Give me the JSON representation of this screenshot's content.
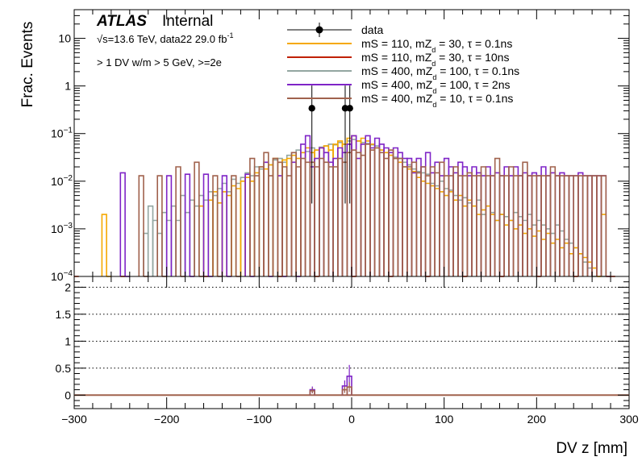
{
  "chart_data": [
    {
      "type": "histogram",
      "panel": "main",
      "ylabel": "Frac. Events",
      "yscale": "log",
      "ylim": [
        0.0001,
        40
      ],
      "xlim": [
        -300,
        300
      ],
      "y_ticks": [
        {
          "v": 0.0001,
          "base": "10",
          "exp": "−4"
        },
        {
          "v": 0.001,
          "base": "10",
          "exp": "−3"
        },
        {
          "v": 0.01,
          "base": "10",
          "exp": "−2"
        },
        {
          "v": 0.1,
          "base": "10",
          "exp": "−1"
        },
        {
          "v": 1,
          "base": "1",
          "exp": ""
        },
        {
          "v": 10,
          "base": "10",
          "exp": ""
        }
      ],
      "annotations": {
        "atlas": "ATLAS",
        "internal": "Internal",
        "lumi_a": "√s=13.6 TeV, data22 29.0 fb",
        "lumi_exp": "-1",
        "selection": "> 1 DV w/m > 5 GeV, >=2e"
      },
      "legend": [
        {
          "label": "data",
          "color": "#000000",
          "marker": "point"
        },
        {
          "label": "mS = 110, mZ_d = 30, τ = 0.1ns",
          "color": "#f5a800"
        },
        {
          "label": "mS = 110, mZ_d = 30, τ = 10ns",
          "color": "#c02000"
        },
        {
          "label": "mS = 400, mZ_d = 100, τ = 0.1ns",
          "color": "#93a6a1"
        },
        {
          "label": "mS = 400, mZ_d = 100, τ = 2ns",
          "color": "#7f24c7"
        },
        {
          "label": "mS = 400, mZ_d = 10, τ = 0.1ns",
          "color": "#a0624d"
        }
      ],
      "data_points": [
        {
          "x": -43,
          "y": 0.34
        },
        {
          "x": -7,
          "y": 0.34
        },
        {
          "x": -2,
          "y": 0.34
        }
      ],
      "series": [
        {
          "name": "mS = 400, mZ_d = 100, τ = 0.1ns",
          "color": "#93a6a1",
          "x": [
            -225,
            -220,
            -215,
            -210,
            -205,
            -200,
            -195,
            -190,
            -185,
            -180,
            -175,
            -170,
            -165,
            -160,
            -155,
            -150,
            -145,
            -140,
            -135,
            -130,
            -125,
            -120,
            -115,
            -110,
            -105,
            -100,
            -95,
            -90,
            -85,
            -80,
            -75,
            -70,
            -65,
            -60,
            -55,
            -50,
            -45,
            -40,
            -35,
            -30,
            -25,
            -20,
            -15,
            -10,
            -5,
            0,
            5,
            10,
            15,
            20,
            25,
            30,
            35,
            40,
            45,
            50,
            55,
            60,
            65,
            70,
            75,
            80,
            85,
            90,
            95,
            100,
            105,
            110,
            115,
            120,
            125,
            130,
            135,
            140,
            145,
            150,
            155,
            160,
            165,
            170,
            175,
            180,
            185,
            190,
            195,
            200,
            205,
            210,
            215,
            220,
            225,
            230,
            235,
            240,
            245,
            250,
            255,
            260,
            265,
            270
          ],
          "values": [
            0.0008,
            0.003,
            0.0015,
            0.0008,
            0.0022,
            0.0015,
            0.003,
            0.0015,
            0.005,
            0.0022,
            0.004,
            0.003,
            0.005,
            0.004,
            0.006,
            0.005,
            0.007,
            0.009,
            0.006,
            0.011,
            0.009,
            0.012,
            0.015,
            0.013,
            0.02,
            0.018,
            0.025,
            0.022,
            0.028,
            0.03,
            0.025,
            0.035,
            0.04,
            0.045,
            0.04,
            0.042,
            0.05,
            0.045,
            0.052,
            0.055,
            0.06,
            0.058,
            0.065,
            0.06,
            0.07,
            0.075,
            0.07,
            0.065,
            0.062,
            0.058,
            0.055,
            0.045,
            0.04,
            0.035,
            0.032,
            0.03,
            0.025,
            0.022,
            0.018,
            0.016,
            0.015,
            0.014,
            0.009,
            0.008,
            0.01,
            0.007,
            0.0065,
            0.005,
            0.004,
            0.0045,
            0.0035,
            0.003,
            0.004,
            0.002,
            0.003,
            0.0022,
            0.0015,
            0.002,
            0.0018,
            0.0015,
            0.0022,
            0.0018,
            0.0015,
            0.002,
            0.0012,
            0.0015,
            0.0012,
            0.001,
            0.0008,
            0.0012,
            0.0009,
            0.0006,
            0.0005,
            0.0004,
            0.0003,
            0.0002,
            0.00015,
            0.0001,
            0.0001,
            0.0001
          ]
        },
        {
          "name": "mS = 110, mZ_d = 30, τ = 0.1ns",
          "color": "#f5a800",
          "x": [
            -270,
            -265,
            -165,
            -155,
            -150,
            -145,
            -140,
            -135,
            -130,
            -125,
            -120,
            -115,
            -110,
            -105,
            -100,
            -95,
            -90,
            -85,
            -80,
            -75,
            -70,
            -65,
            -60,
            -55,
            -50,
            -45,
            -40,
            -35,
            -30,
            -25,
            -20,
            -15,
            -10,
            -5,
            0,
            5,
            10,
            15,
            20,
            25,
            30,
            35,
            40,
            45,
            50,
            55,
            60,
            65,
            70,
            75,
            80,
            85,
            90,
            95,
            100,
            105,
            110,
            115,
            120,
            125,
            130,
            135,
            140,
            145,
            150,
            155,
            160,
            165,
            170,
            175,
            180,
            185,
            190,
            195,
            200,
            205,
            210,
            215,
            220,
            225,
            230,
            235,
            240,
            245,
            250,
            255,
            260,
            265,
            270,
            275
          ],
          "values": [
            0.002,
            0.0001,
            0.003,
            0.004,
            0.006,
            0.0035,
            0.006,
            0.005,
            0.008,
            0.007,
            0.01,
            0.012,
            0.01,
            0.015,
            0.02,
            0.018,
            0.022,
            0.03,
            0.025,
            0.028,
            0.03,
            0.035,
            0.03,
            0.04,
            0.05,
            0.04,
            0.045,
            0.05,
            0.055,
            0.045,
            0.06,
            0.07,
            0.06,
            0.08,
            0.09,
            0.07,
            0.08,
            0.07,
            0.06,
            0.05,
            0.045,
            0.04,
            0.035,
            0.03,
            0.025,
            0.02,
            0.018,
            0.016,
            0.012,
            0.01,
            0.009,
            0.008,
            0.007,
            0.006,
            0.005,
            0.006,
            0.004,
            0.005,
            0.003,
            0.004,
            0.003,
            0.002,
            0.0025,
            0.003,
            0.002,
            0.0015,
            0.002,
            0.0012,
            0.0015,
            0.001,
            0.0012,
            0.0008,
            0.001,
            0.0007,
            0.0009,
            0.0006,
            0.0008,
            0.0005,
            0.0006,
            0.0004,
            0.0005,
            0.0003,
            0.0004,
            0.0003,
            0.00025,
            0.0002,
            0.00015,
            0.0001,
            0.002,
            0.0001
          ]
        },
        {
          "name": "mS = 110, mZ_d = 30, τ = 10ns",
          "color": "#c02000",
          "x": [
            -300,
            -250,
            -160,
            -80,
            -40,
            0,
            40,
            80,
            120,
            160,
            200,
            240,
            280
          ],
          "values": [
            0.0001,
            0.0001,
            0.0001,
            0.0001,
            0.0001,
            0.0001,
            0.0001,
            0.0001,
            0.0001,
            0.0001,
            0.0001,
            0.0001,
            0.0001
          ]
        },
        {
          "name": "mS = 400, mZ_d = 100, τ = 2ns",
          "color": "#7f24c7",
          "x": [
            -250,
            -245,
            -200,
            -180,
            -175,
            -160,
            -155,
            -140,
            -135,
            -115,
            -110,
            -95,
            -90,
            -80,
            -75,
            -65,
            -60,
            -55,
            -50,
            -45,
            -40,
            -35,
            -30,
            -25,
            -20,
            -15,
            -10,
            -5,
            0,
            5,
            10,
            15,
            20,
            25,
            30,
            35,
            40,
            45,
            50,
            55,
            60,
            65,
            70,
            75,
            80,
            85,
            90,
            95,
            100,
            105,
            110,
            115,
            120,
            125,
            130,
            135,
            140,
            145,
            150,
            155,
            160,
            165,
            170,
            175,
            180,
            185,
            190,
            195,
            200,
            205,
            210,
            215,
            220,
            225,
            230,
            235,
            240,
            245,
            250,
            255,
            260,
            265,
            270,
            275
          ],
          "values": [
            0.015,
            0.0001,
            0.013,
            0.014,
            0.0001,
            0.014,
            0.0001,
            0.013,
            0.0001,
            0.014,
            0.0001,
            0.025,
            0.0001,
            0.013,
            0.0001,
            0.025,
            0.0001,
            0.06,
            0.09,
            0.02,
            0.03,
            0.05,
            0.04,
            0.025,
            0.03,
            0.05,
            0.04,
            0.06,
            0.09,
            0.03,
            0.06,
            0.09,
            0.05,
            0.08,
            0.06,
            0.05,
            0.04,
            0.05,
            0.04,
            0.03,
            0.03,
            0.015,
            0.03,
            0.02,
            0.04,
            0.015,
            0.025,
            0.013,
            0.03,
            0.02,
            0.015,
            0.025,
            0.02,
            0.013,
            0.02,
            0.015,
            0.013,
            0.02,
            0.013,
            0.015,
            0.013,
            0.02,
            0.013,
            0.02,
            0.013,
            0.015,
            0.013,
            0.015,
            0.013,
            0.02,
            0.013,
            0.015,
            0.013,
            0.015,
            0.013,
            0.013,
            0.013,
            0.015,
            0.013,
            0.013,
            0.013,
            0.013,
            0.013,
            0.0001
          ]
        },
        {
          "name": "mS = 400, mZ_d = 10, τ = 0.1ns",
          "color": "#a0624d",
          "x": [
            -230,
            -225,
            -210,
            -205,
            -190,
            -185,
            -170,
            -165,
            -150,
            -145,
            -130,
            -125,
            -110,
            -105,
            -100,
            -95,
            -90,
            -85,
            -80,
            -75,
            -70,
            -65,
            -60,
            -55,
            -50,
            -45,
            -40,
            -35,
            -30,
            -25,
            -20,
            -15,
            -10,
            -5,
            0,
            5,
            10,
            15,
            20,
            25,
            30,
            35,
            40,
            45,
            50,
            55,
            60,
            65,
            70,
            75,
            80,
            85,
            90,
            95,
            100,
            105,
            110,
            115,
            120,
            125,
            130,
            135,
            140,
            145,
            150,
            155,
            160,
            165,
            170,
            175,
            180,
            185,
            190,
            195,
            200,
            205,
            210,
            215,
            220,
            225,
            230,
            235,
            240,
            245,
            250,
            255,
            260,
            265,
            270,
            275
          ],
          "values": [
            0.013,
            0.0001,
            0.013,
            0.0001,
            0.02,
            0.0001,
            0.025,
            0.0001,
            0.013,
            0.0001,
            0.013,
            0.0001,
            0.03,
            0.013,
            0.02,
            0.04,
            0.013,
            0.03,
            0.025,
            0.02,
            0.013,
            0.04,
            0.02,
            0.03,
            0.025,
            0.025,
            0.02,
            0.03,
            0.025,
            0.02,
            0.02,
            0.03,
            0.025,
            0.04,
            0.045,
            0.04,
            0.035,
            0.06,
            0.045,
            0.05,
            0.04,
            0.03,
            0.045,
            0.03,
            0.03,
            0.02,
            0.02,
            0.025,
            0.015,
            0.02,
            0.013,
            0.02,
            0.015,
            0.025,
            0.013,
            0.013,
            0.02,
            0.013,
            0.013,
            0.015,
            0.013,
            0.013,
            0.02,
            0.013,
            0.013,
            0.03,
            0.013,
            0.013,
            0.02,
            0.013,
            0.013,
            0.025,
            0.013,
            0.013,
            0.013,
            0.013,
            0.013,
            0.02,
            0.013,
            0.013,
            0.013,
            0.013,
            0.013,
            0.013,
            0.013,
            0.013,
            0.013,
            0.013,
            0.013,
            0.0001
          ]
        }
      ]
    },
    {
      "type": "histogram",
      "panel": "ratio",
      "xlabel": "DV z [mm]",
      "xlim": [
        -300,
        300
      ],
      "ylim": [
        -0.25,
        2.2
      ],
      "y_ticks": [
        0,
        0.5,
        1,
        1.5,
        2
      ],
      "x_ticks": [
        -300,
        -200,
        -100,
        0,
        100,
        200,
        300
      ],
      "grid_y": [
        0.5,
        1,
        1.5,
        2
      ],
      "series": [
        {
          "name": "ratio mS = 400, mZ_d = 100, τ = 2ns",
          "color": "#7f24c7",
          "x": [
            -45,
            -10,
            -5
          ],
          "values": [
            0.1,
            0.17,
            0.35
          ]
        },
        {
          "name": "ratio mS = 400, mZ_d = 10, τ = 0.1ns",
          "color": "#a0624d",
          "x": [
            -45,
            -10,
            -5
          ],
          "values": [
            0.08,
            0.1,
            0.15
          ]
        }
      ]
    }
  ]
}
